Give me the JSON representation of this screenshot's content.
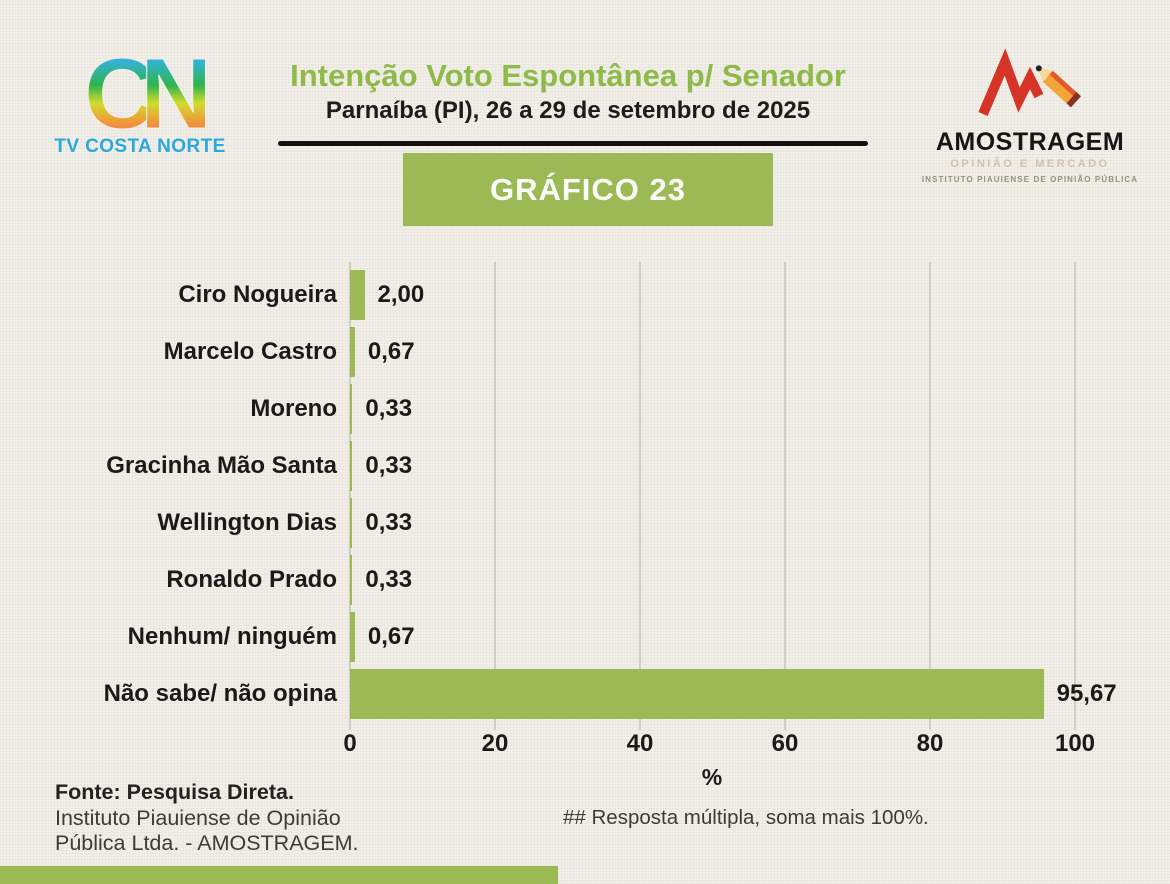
{
  "page": {
    "background": "#f1efe8",
    "accent_green": "#9bba55"
  },
  "header": {
    "title": "Intenção Voto Espontânea p/ Senador",
    "subtitle": "Parnaíba (PI), 26 a 29 de setembro de 2025",
    "banner": "GRÁFICO 23"
  },
  "logos": {
    "tv_costa_norte": {
      "label": "TV COSTA NORTE",
      "color": "#2aa9e0"
    },
    "amostragem": {
      "name": "AMOSTRAGEM",
      "tagline": "OPINIÃO E MERCADO",
      "subtext": "INSTITUTO PIAUIENSE DE OPINIÃO PÚBLICA",
      "mark_color": "#d63426"
    }
  },
  "chart_data": {
    "type": "bar",
    "orientation": "horizontal",
    "title": "Intenção Voto Espontânea p/ Senador",
    "categories": [
      "Ciro Nogueira",
      "Marcelo Castro",
      "Moreno",
      "Gracinha Mão Santa",
      "Wellington Dias",
      "Ronaldo Prado",
      "Nenhum/ ninguém",
      "Não sabe/ não opina"
    ],
    "values": [
      2.0,
      0.67,
      0.33,
      0.33,
      0.33,
      0.33,
      0.67,
      95.67
    ],
    "values_display": [
      "2,00",
      "0,67",
      "0,33",
      "0,33",
      "0,33",
      "0,33",
      "0,67",
      "95,67"
    ],
    "xlabel": "%",
    "xticks": [
      0,
      20,
      40,
      60,
      80,
      100
    ],
    "xlim": [
      0,
      100
    ],
    "grid": true,
    "bar_color": "#9bba55",
    "legend": "none"
  },
  "footer": {
    "source_line1": "Fonte: Pesquisa Direta.",
    "source_line2": "Instituto Piauiense de Opinião",
    "source_line3": "Pública Ltda. - AMOSTRAGEM.",
    "note": "## Resposta múltipla, soma mais 100%."
  }
}
